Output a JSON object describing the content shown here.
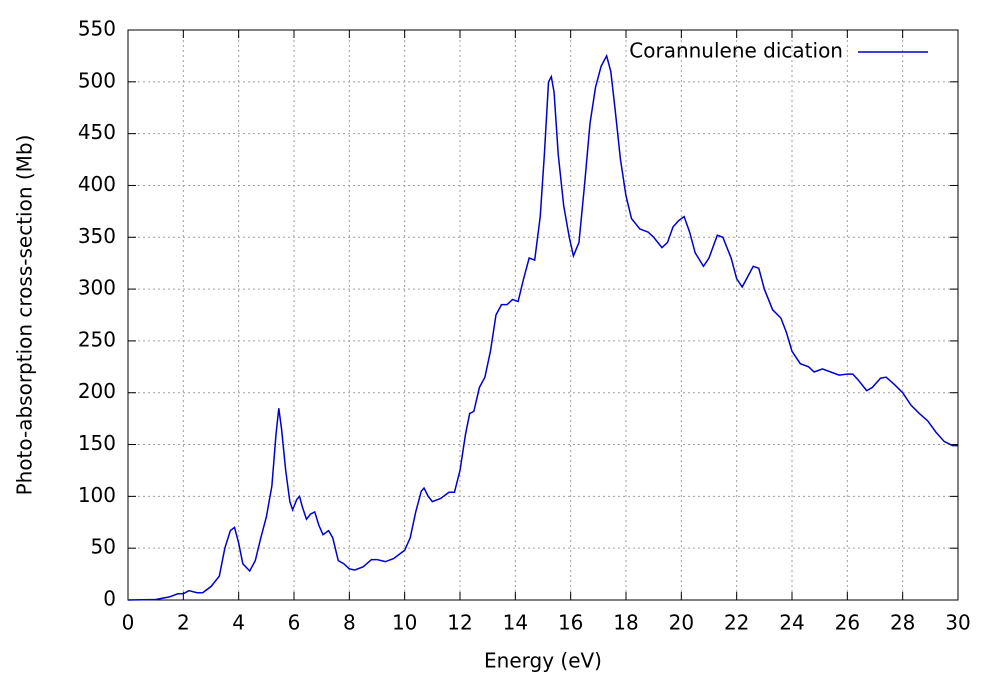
{
  "chart_data": {
    "type": "line",
    "xlabel": "Energy (eV)",
    "ylabel": "Photo-absorption cross-section (Mb)",
    "x": [
      0,
      1,
      1.5,
      1.8,
      2.0,
      2.2,
      2.5,
      2.7,
      3.0,
      3.3,
      3.5,
      3.7,
      3.85,
      4.0,
      4.15,
      4.4,
      4.6,
      4.8,
      5.0,
      5.2,
      5.35,
      5.45,
      5.55,
      5.7,
      5.85,
      5.95,
      6.1,
      6.2,
      6.3,
      6.45,
      6.6,
      6.75,
      6.9,
      7.05,
      7.25,
      7.4,
      7.6,
      7.8,
      8.0,
      8.2,
      8.5,
      8.8,
      9.0,
      9.3,
      9.6,
      10.0,
      10.2,
      10.4,
      10.6,
      10.7,
      10.85,
      11.0,
      11.3,
      11.6,
      11.8,
      12.0,
      12.2,
      12.35,
      12.5,
      12.7,
      12.9,
      13.1,
      13.3,
      13.5,
      13.7,
      13.9,
      14.1,
      14.3,
      14.5,
      14.7,
      14.9,
      15.05,
      15.2,
      15.3,
      15.4,
      15.55,
      15.75,
      15.95,
      16.1,
      16.3,
      16.5,
      16.7,
      16.9,
      17.1,
      17.3,
      17.45,
      17.6,
      17.8,
      18.0,
      18.2,
      18.5,
      18.8,
      19.0,
      19.3,
      19.5,
      19.7,
      19.9,
      20.1,
      20.3,
      20.5,
      20.8,
      21.0,
      21.3,
      21.5,
      21.8,
      22.0,
      22.2,
      22.4,
      22.6,
      22.8,
      23.0,
      23.3,
      23.6,
      23.8,
      24.0,
      24.3,
      24.6,
      24.8,
      25.1,
      25.4,
      25.7,
      26.0,
      26.2,
      26.4,
      26.7,
      26.9,
      27.2,
      27.4,
      27.7,
      28.0,
      28.3,
      28.6,
      28.9,
      29.2,
      29.5,
      29.8,
      30.0
    ],
    "series": [
      {
        "name": "Corannulene dication",
        "color": "#0000cc",
        "values": [
          0,
          0.5,
          3,
          6,
          6,
          9,
          7,
          7,
          13,
          23,
          50,
          67,
          70,
          55,
          35,
          28,
          38,
          60,
          80,
          110,
          160,
          185,
          165,
          125,
          95,
          87,
          97,
          100,
          90,
          78,
          83,
          85,
          72,
          63,
          67,
          60,
          38,
          35,
          30,
          29,
          32,
          39,
          39,
          37,
          40,
          48,
          60,
          85,
          105,
          108,
          100,
          95,
          98,
          104,
          104,
          125,
          160,
          180,
          182,
          205,
          215,
          240,
          275,
          285,
          285,
          290,
          288,
          310,
          330,
          328,
          370,
          430,
          500,
          505,
          490,
          430,
          380,
          350,
          332,
          345,
          400,
          460,
          495,
          515,
          525,
          510,
          475,
          425,
          390,
          368,
          358,
          355,
          350,
          340,
          345,
          360,
          366,
          370,
          355,
          335,
          322,
          330,
          352,
          350,
          330,
          310,
          302,
          312,
          322,
          320,
          300,
          280,
          272,
          258,
          240,
          228,
          225,
          220,
          223,
          220,
          217,
          218,
          218,
          212,
          202,
          205,
          214,
          215,
          208,
          200,
          188,
          180,
          173,
          162,
          153,
          149,
          149
        ]
      }
    ],
    "xlim": [
      0,
      30
    ],
    "xticks": [
      0,
      2,
      4,
      6,
      8,
      10,
      12,
      14,
      16,
      18,
      20,
      22,
      24,
      26,
      28,
      30
    ],
    "ylim": [
      0,
      550
    ],
    "yticks": [
      0,
      50,
      100,
      150,
      200,
      250,
      300,
      350,
      400,
      450,
      500,
      550
    ],
    "grid": true,
    "legend": "top-right"
  }
}
